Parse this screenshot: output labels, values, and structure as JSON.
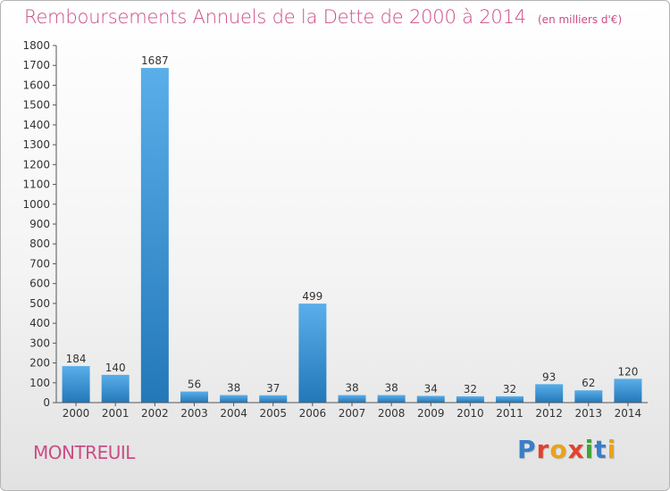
{
  "header": {
    "title": "Remboursements Annuels de la Dette de 2000 à 2014",
    "subtitle": "(en milliers d'€)"
  },
  "footer": {
    "commune": "MONTREUIL",
    "logo": "Proxiti",
    "logo_colors": [
      "#3a7dc8",
      "#e0432f",
      "#e8a21c",
      "#e0432f",
      "#3fa535",
      "#3a7dc8",
      "#e8a21c"
    ]
  },
  "colors": {
    "accent": "#cc4c86",
    "bar_light": "#5aaee9",
    "bar_dark": "#2378b8"
  },
  "chart_data": {
    "type": "bar",
    "title": "Remboursements Annuels de la Dette de 2000 à 2014",
    "subtitle": "(en milliers d'€)",
    "xlabel": "",
    "ylabel": "",
    "categories": [
      "2000",
      "2001",
      "2002",
      "2003",
      "2004",
      "2005",
      "2006",
      "2007",
      "2008",
      "2009",
      "2010",
      "2011",
      "2012",
      "2013",
      "2014"
    ],
    "values": [
      184,
      140,
      1687,
      56,
      38,
      37,
      499,
      38,
      38,
      34,
      32,
      32,
      93,
      62,
      120
    ],
    "ylim": [
      0,
      1800
    ],
    "yticks": [
      0,
      100,
      200,
      300,
      400,
      500,
      600,
      700,
      800,
      900,
      1000,
      1100,
      1200,
      1300,
      1400,
      1500,
      1600,
      1700,
      1800
    ],
    "grid": false,
    "data_labels": true
  }
}
